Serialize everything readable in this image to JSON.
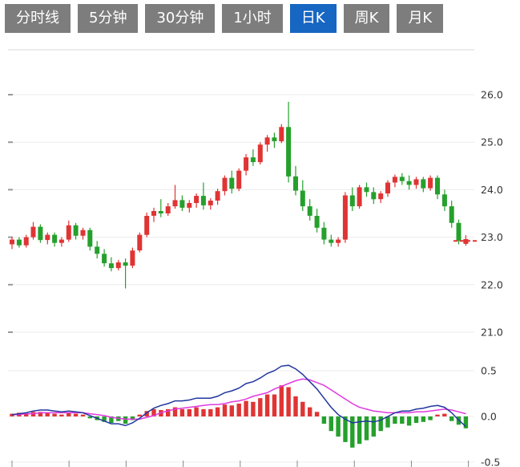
{
  "toolbar": {
    "tabs": [
      {
        "label": "分时线",
        "active": false
      },
      {
        "label": "5分钟",
        "active": false
      },
      {
        "label": "30分钟",
        "active": false
      },
      {
        "label": "1小时",
        "active": false
      },
      {
        "label": "日K",
        "active": true
      },
      {
        "label": "周K",
        "active": false
      },
      {
        "label": "月K",
        "active": false
      }
    ],
    "active_bg": "#1766c2",
    "inactive_bg": "#7d7d7d"
  },
  "chart_data": {
    "type": "candlestick",
    "title": "",
    "legend_position": "none",
    "grid": true,
    "price_axis": {
      "ticks": [
        26.0,
        25.0,
        24.0,
        23.0,
        22.0,
        21.0
      ],
      "range": [
        20.6,
        26.3
      ],
      "side": "right"
    },
    "macd_axis": {
      "ticks": [
        0.5,
        0.0,
        -0.5
      ],
      "range": [
        -0.55,
        0.55
      ],
      "side": "right"
    },
    "colors": {
      "up": "#e03434",
      "down": "#25a02c",
      "dif_line": "#23379e",
      "dea_line": "#e03ae0"
    },
    "last_price": 22.92,
    "candles": [
      [
        22.85,
        23.0,
        22.75,
        22.95
      ],
      [
        22.95,
        23.0,
        22.78,
        22.83
      ],
      [
        22.83,
        23.05,
        22.78,
        23.0
      ],
      [
        23.0,
        23.32,
        22.95,
        23.22
      ],
      [
        23.22,
        23.27,
        22.88,
        22.94
      ],
      [
        22.94,
        23.1,
        22.85,
        23.05
      ],
      [
        23.05,
        23.1,
        22.8,
        22.88
      ],
      [
        22.88,
        23.0,
        22.8,
        22.95
      ],
      [
        22.95,
        23.35,
        22.9,
        23.25
      ],
      [
        23.25,
        23.3,
        22.95,
        23.03
      ],
      [
        23.03,
        23.2,
        22.95,
        23.15
      ],
      [
        23.15,
        23.2,
        22.72,
        22.8
      ],
      [
        22.8,
        22.92,
        22.55,
        22.65
      ],
      [
        22.65,
        22.75,
        22.38,
        22.45
      ],
      [
        22.45,
        22.58,
        22.28,
        22.35
      ],
      [
        22.35,
        22.52,
        22.3,
        22.47
      ],
      [
        22.47,
        22.55,
        21.92,
        22.4
      ],
      [
        22.4,
        22.78,
        22.35,
        22.72
      ],
      [
        22.72,
        23.1,
        22.68,
        23.05
      ],
      [
        23.05,
        23.52,
        23.0,
        23.45
      ],
      [
        23.45,
        23.62,
        23.32,
        23.55
      ],
      [
        23.55,
        23.8,
        23.42,
        23.5
      ],
      [
        23.5,
        23.72,
        23.45,
        23.65
      ],
      [
        23.65,
        24.1,
        23.6,
        23.78
      ],
      [
        23.78,
        23.88,
        23.55,
        23.62
      ],
      [
        23.62,
        23.78,
        23.52,
        23.72
      ],
      [
        23.72,
        23.92,
        23.62,
        23.87
      ],
      [
        23.87,
        24.15,
        23.58,
        23.67
      ],
      [
        23.67,
        23.82,
        23.58,
        23.77
      ],
      [
        23.77,
        24.02,
        23.68,
        23.97
      ],
      [
        23.97,
        24.3,
        23.88,
        24.25
      ],
      [
        24.25,
        24.4,
        23.92,
        24.02
      ],
      [
        24.02,
        24.45,
        23.97,
        24.4
      ],
      [
        24.4,
        24.75,
        24.3,
        24.68
      ],
      [
        24.68,
        24.85,
        24.5,
        24.58
      ],
      [
        24.58,
        25.0,
        24.53,
        24.95
      ],
      [
        24.95,
        25.15,
        24.8,
        25.1
      ],
      [
        25.1,
        25.2,
        24.88,
        25.02
      ],
      [
        25.02,
        25.38,
        24.98,
        25.32
      ],
      [
        25.32,
        25.85,
        24.15,
        24.28
      ],
      [
        24.28,
        24.5,
        23.88,
        23.98
      ],
      [
        23.98,
        24.2,
        23.55,
        23.65
      ],
      [
        23.65,
        23.8,
        23.35,
        23.45
      ],
      [
        23.45,
        23.6,
        23.1,
        23.2
      ],
      [
        23.2,
        23.32,
        22.85,
        22.95
      ],
      [
        22.95,
        23.05,
        22.8,
        22.88
      ],
      [
        22.88,
        23.0,
        22.8,
        22.95
      ],
      [
        22.95,
        23.95,
        22.88,
        23.88
      ],
      [
        23.88,
        24.05,
        23.55,
        23.65
      ],
      [
        23.65,
        24.1,
        23.6,
        24.05
      ],
      [
        24.05,
        24.15,
        23.85,
        23.95
      ],
      [
        23.95,
        24.05,
        23.7,
        23.8
      ],
      [
        23.8,
        23.97,
        23.72,
        23.92
      ],
      [
        23.92,
        24.2,
        23.85,
        24.15
      ],
      [
        24.15,
        24.32,
        24.05,
        24.27
      ],
      [
        24.27,
        24.35,
        24.1,
        24.18
      ],
      [
        24.18,
        24.3,
        24.0,
        24.1
      ],
      [
        24.1,
        24.27,
        24.02,
        24.22
      ],
      [
        24.22,
        24.27,
        23.95,
        24.03
      ],
      [
        24.03,
        24.3,
        23.98,
        24.25
      ],
      [
        24.25,
        24.3,
        23.8,
        23.9
      ],
      [
        23.9,
        24.0,
        23.55,
        23.65
      ],
      [
        23.65,
        23.77,
        23.2,
        23.3
      ],
      [
        23.3,
        23.37,
        22.85,
        22.92
      ],
      [
        22.86,
        23.04,
        22.82,
        22.96
      ]
    ],
    "macd": {
      "histogram": [
        0.03,
        0.04,
        0.03,
        0.05,
        0.05,
        0.04,
        0.03,
        0.02,
        0.04,
        0.03,
        0.02,
        -0.02,
        -0.04,
        -0.06,
        -0.07,
        -0.05,
        -0.08,
        -0.04,
        0.02,
        0.06,
        0.08,
        0.07,
        0.08,
        0.1,
        0.08,
        0.08,
        0.1,
        0.08,
        0.08,
        0.1,
        0.13,
        0.12,
        0.14,
        0.17,
        0.16,
        0.2,
        0.24,
        0.24,
        0.34,
        0.32,
        0.22,
        0.16,
        0.1,
        0.05,
        -0.08,
        -0.16,
        -0.22,
        -0.28,
        -0.34,
        -0.3,
        -0.26,
        -0.22,
        -0.16,
        -0.12,
        -0.08,
        -0.08,
        -0.1,
        -0.07,
        -0.06,
        -0.04,
        0.02,
        0.03,
        -0.05,
        -0.09,
        -0.13
      ],
      "dif": [
        0.02,
        0.03,
        0.04,
        0.06,
        0.07,
        0.07,
        0.06,
        0.05,
        0.06,
        0.05,
        0.04,
        0.01,
        -0.02,
        -0.05,
        -0.08,
        -0.08,
        -0.1,
        -0.07,
        -0.02,
        0.04,
        0.09,
        0.12,
        0.14,
        0.17,
        0.17,
        0.18,
        0.2,
        0.2,
        0.2,
        0.22,
        0.26,
        0.28,
        0.31,
        0.36,
        0.38,
        0.42,
        0.47,
        0.5,
        0.55,
        0.56,
        0.52,
        0.46,
        0.38,
        0.3,
        0.2,
        0.1,
        0.02,
        -0.03,
        -0.07,
        -0.06,
        -0.05,
        -0.06,
        -0.04,
        0.0,
        0.04,
        0.06,
        0.06,
        0.08,
        0.09,
        0.11,
        0.12,
        0.1,
        0.04,
        -0.04,
        -0.11
      ],
      "dea": [
        0.02,
        0.02,
        0.03,
        0.03,
        0.04,
        0.04,
        0.04,
        0.04,
        0.04,
        0.04,
        0.04,
        0.03,
        0.02,
        0.01,
        -0.01,
        -0.02,
        -0.03,
        -0.03,
        -0.03,
        -0.01,
        0.01,
        0.04,
        0.06,
        0.08,
        0.09,
        0.1,
        0.11,
        0.12,
        0.13,
        0.13,
        0.14,
        0.16,
        0.17,
        0.19,
        0.22,
        0.24,
        0.26,
        0.3,
        0.33,
        0.36,
        0.39,
        0.41,
        0.4,
        0.37,
        0.34,
        0.29,
        0.24,
        0.19,
        0.14,
        0.1,
        0.08,
        0.06,
        0.05,
        0.04,
        0.04,
        0.04,
        0.04,
        0.05,
        0.05,
        0.06,
        0.07,
        0.08,
        0.07,
        0.05,
        0.03
      ]
    }
  }
}
